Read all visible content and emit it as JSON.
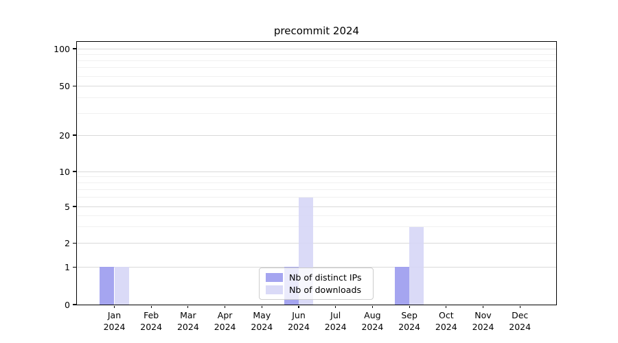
{
  "chart_data": {
    "type": "bar",
    "title": "precommit 2024",
    "categories": [
      "Jan",
      "Feb",
      "Mar",
      "Apr",
      "May",
      "Jun",
      "Jul",
      "Aug",
      "Sep",
      "Oct",
      "Nov",
      "Dec"
    ],
    "year_label": "2024",
    "series": [
      {
        "name": "Nb of distinct IPs",
        "color": "#9b9bee",
        "values": [
          1,
          0,
          0,
          0,
          0,
          1,
          0,
          0,
          1,
          0,
          0,
          0
        ]
      },
      {
        "name": "Nb of downloads",
        "color": "#d6d6f6",
        "values": [
          1,
          0,
          0,
          0,
          0,
          6,
          0,
          0,
          3,
          0,
          0,
          0
        ]
      }
    ],
    "yticks": [
      0,
      1,
      2,
      5,
      10,
      20,
      50,
      100
    ],
    "yscale": "log-like",
    "ylim": [
      0,
      115
    ],
    "xlabel": "",
    "ylabel": "",
    "grid": "horizontal major and minor gridlines",
    "legend_position": "bottom-center",
    "colors": {
      "major_grid": "#d9d9d9",
      "minor_grid": "#f0f0f0",
      "axis": "#000000",
      "background": "#ffffff"
    }
  }
}
